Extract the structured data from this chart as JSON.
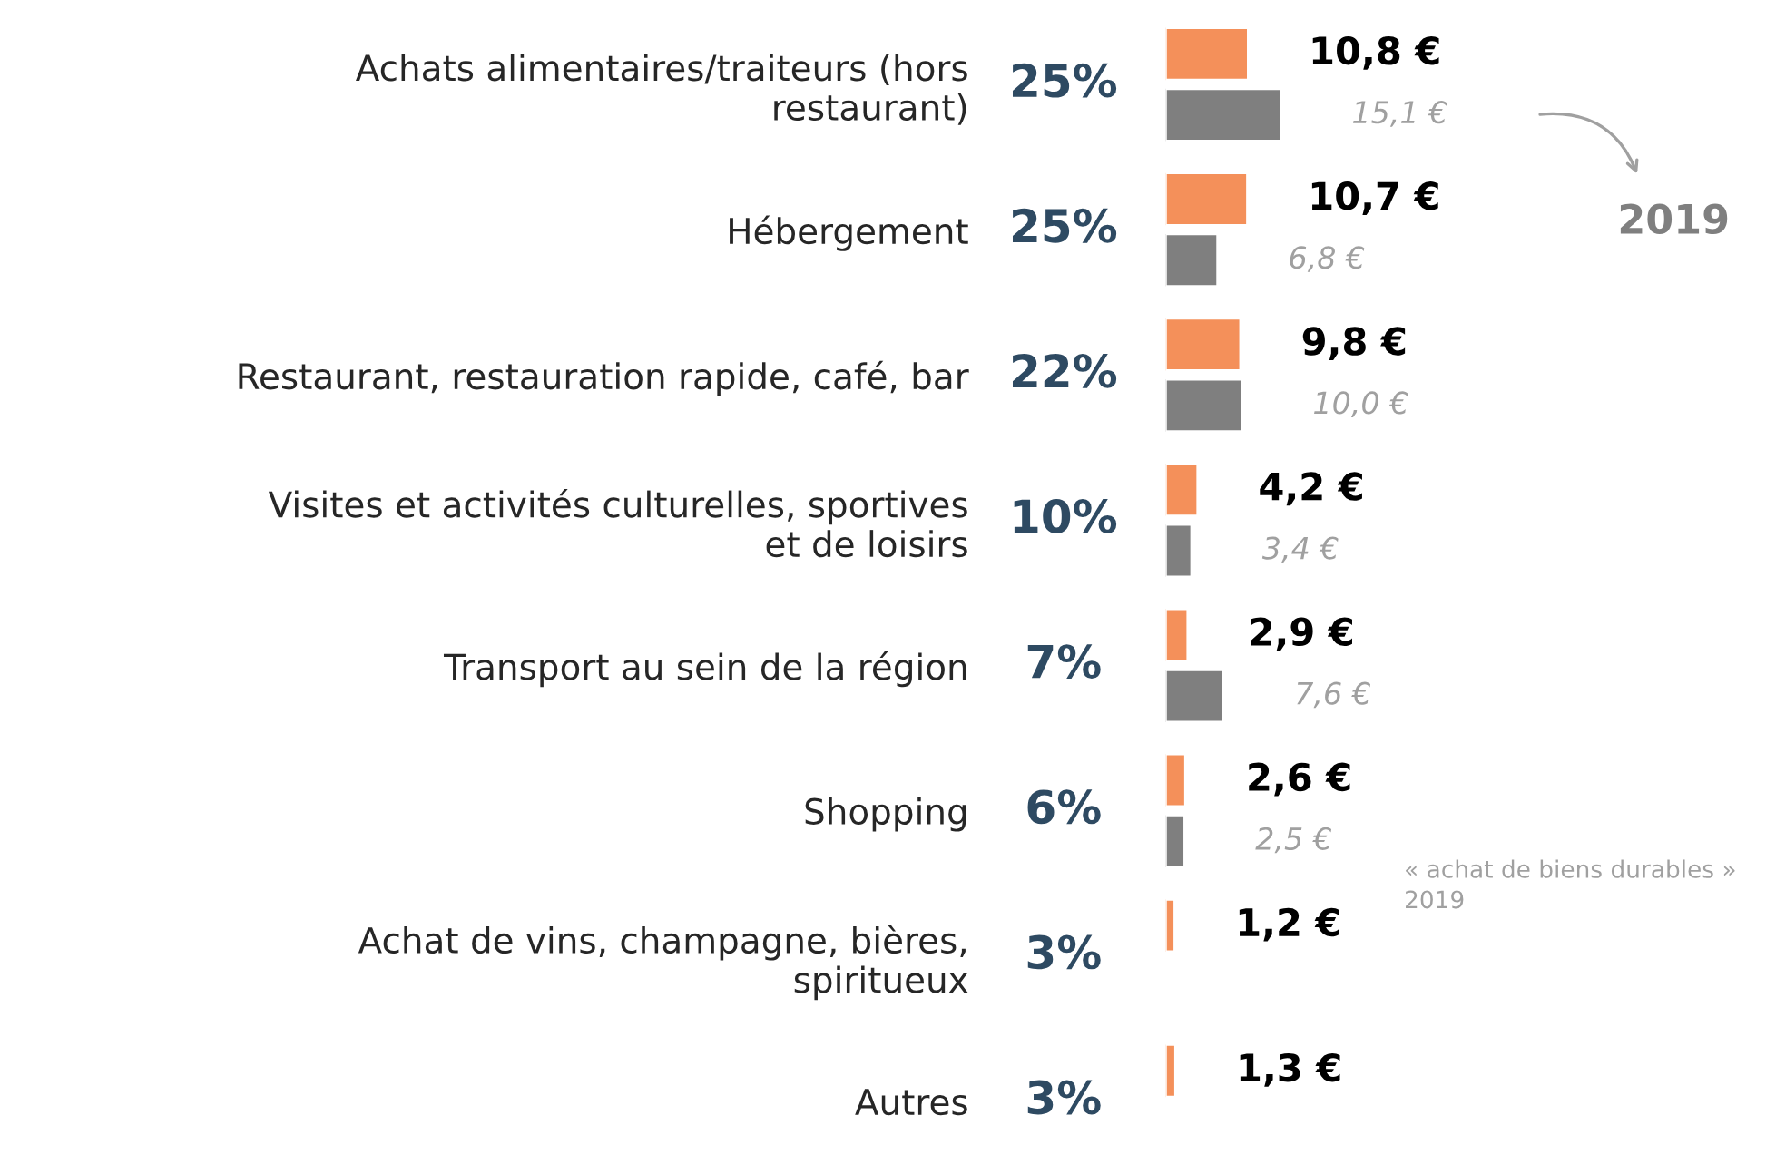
{
  "chart_data": {
    "type": "bar",
    "orientation": "horizontal",
    "tick_labels": "y",
    "categories": [
      "Achats alimentaires/traiteurs (hors\nrestaurant)",
      "Hébergement",
      "Restaurant, restauration rapide, café, bar",
      "Visites et activités culturelles, sportives\net de loisirs",
      "Transport au sein de la région",
      "Shopping",
      "Achat de vins, champagne, bières,\nspiritueux",
      "Autres"
    ],
    "series": [
      {
        "color": "#f4905a",
        "values": [
          10.8,
          10.7,
          9.8,
          4.2,
          2.9,
          2.6,
          1.2,
          1.3
        ],
        "value_labels": [
          "10,8 €",
          "10,7 €",
          "9,8 €",
          "4,2 €",
          "2,9 €",
          "2,6 €",
          "1,2 €",
          "1,3 €"
        ]
      },
      {
        "name": "2019",
        "color": "#7f7f7f",
        "values": [
          15.1,
          6.8,
          10.0,
          3.4,
          7.6,
          2.5,
          null,
          null
        ],
        "value_labels": [
          "15,1 €",
          "6,8 €",
          "10,0 €",
          "3,4 €",
          "7,6 €",
          "2,5 €",
          null,
          null
        ]
      }
    ],
    "annotations": [
      "25%",
      "25%",
      "22%",
      "10%",
      "7%",
      "6%",
      "3%",
      "3%",
      "« achat de biens durables »\n2019"
    ]
  }
}
